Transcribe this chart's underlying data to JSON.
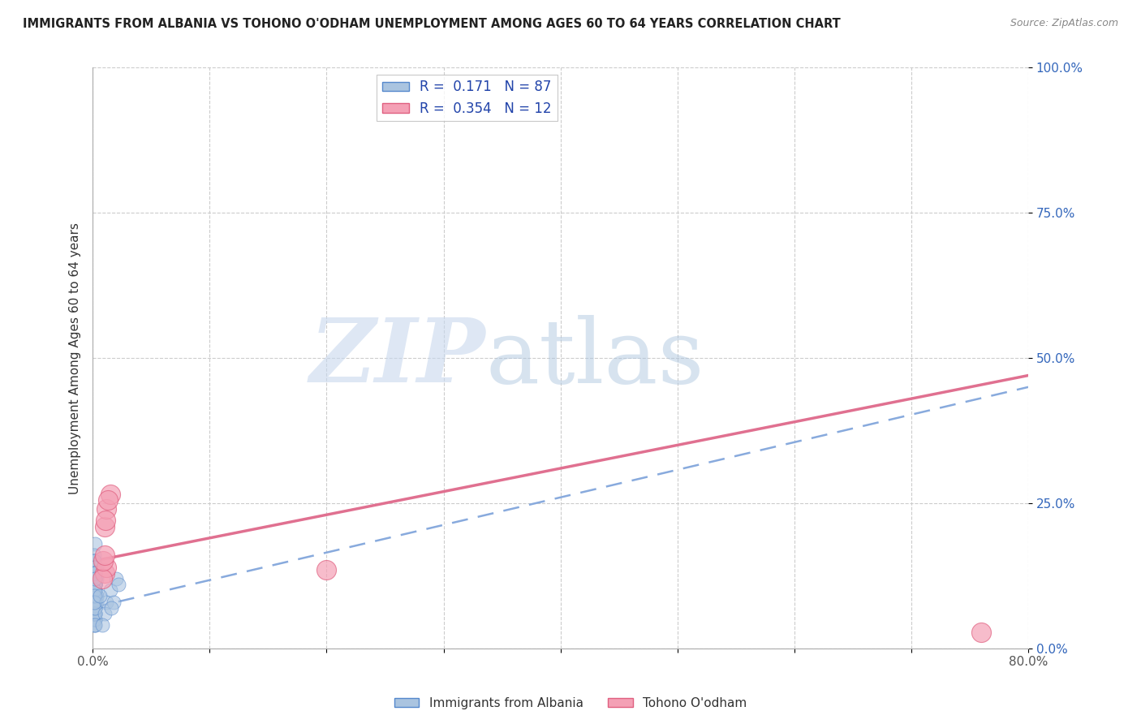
{
  "title": "IMMIGRANTS FROM ALBANIA VS TOHONO O'ODHAM UNEMPLOYMENT AMONG AGES 60 TO 64 YEARS CORRELATION CHART",
  "source": "Source: ZipAtlas.com",
  "ylabel": "Unemployment Among Ages 60 to 64 years",
  "xlabel": "",
  "xlim": [
    0.0,
    0.8
  ],
  "ylim": [
    0.0,
    1.0
  ],
  "xticks": [
    0.0,
    0.1,
    0.2,
    0.3,
    0.4,
    0.5,
    0.6,
    0.7,
    0.8
  ],
  "xticklabels": [
    "0.0%",
    "",
    "",
    "",
    "",
    "",
    "",
    "",
    "80.0%"
  ],
  "yticks": [
    0.0,
    0.25,
    0.5,
    0.75,
    1.0
  ],
  "yticklabels": [
    "0.0%",
    "25.0%",
    "50.0%",
    "75.0%",
    "100.0%"
  ],
  "blue_label": "Immigrants from Albania",
  "pink_label": "Tohono O'odham",
  "R_blue": 0.171,
  "N_blue": 87,
  "R_pink": 0.354,
  "N_pink": 12,
  "blue_color": "#aac4e0",
  "pink_color": "#f4a0b5",
  "blue_edge": "#5588cc",
  "pink_edge": "#e06080",
  "trend_blue_color": "#88aadd",
  "trend_pink_color": "#e07090",
  "background_color": "#ffffff",
  "grid_color": "#cccccc",
  "title_color": "#222222",
  "watermark_zip": "ZIP",
  "watermark_atlas": "atlas",
  "watermark_color_zip": "#c8d8ee",
  "watermark_color_atlas": "#b0c8e0",
  "blue_trend_x0": 0.0,
  "blue_trend_y0": 0.07,
  "blue_trend_x1": 0.8,
  "blue_trend_y1": 0.45,
  "pink_trend_x0": 0.0,
  "pink_trend_y0": 0.15,
  "pink_trend_x1": 0.8,
  "pink_trend_y1": 0.47,
  "blue_points_x": [
    0.001,
    0.002,
    0.003,
    0.002,
    0.001,
    0.003,
    0.001,
    0.002,
    0.001,
    0.002,
    0.003,
    0.002,
    0.001,
    0.002,
    0.001,
    0.003,
    0.002,
    0.001,
    0.002,
    0.002,
    0.001,
    0.002,
    0.002,
    0.001,
    0.002,
    0.002,
    0.001,
    0.002,
    0.003,
    0.002,
    0.001,
    0.002,
    0.002,
    0.001,
    0.001,
    0.002,
    0.002,
    0.001,
    0.002,
    0.002,
    0.001,
    0.002,
    0.001,
    0.001,
    0.002,
    0.002,
    0.001,
    0.002,
    0.002,
    0.001,
    0.001,
    0.002,
    0.002,
    0.001,
    0.002,
    0.001,
    0.001,
    0.002,
    0.002,
    0.001,
    0.002,
    0.002,
    0.001,
    0.001,
    0.002,
    0.002,
    0.001,
    0.002,
    0.002,
    0.001,
    0.002,
    0.001,
    0.002,
    0.002,
    0.001,
    0.002,
    0.002,
    0.001,
    0.015,
    0.012,
    0.01,
    0.008,
    0.006,
    0.02,
    0.018,
    0.016,
    0.022
  ],
  "blue_points_y": [
    0.15,
    0.18,
    0.14,
    0.1,
    0.12,
    0.08,
    0.16,
    0.13,
    0.07,
    0.11,
    0.09,
    0.06,
    0.14,
    0.1,
    0.08,
    0.12,
    0.07,
    0.15,
    0.09,
    0.05,
    0.13,
    0.11,
    0.06,
    0.1,
    0.08,
    0.14,
    0.12,
    0.07,
    0.09,
    0.05,
    0.11,
    0.13,
    0.06,
    0.1,
    0.08,
    0.12,
    0.07,
    0.15,
    0.09,
    0.04,
    0.06,
    0.11,
    0.13,
    0.08,
    0.1,
    0.07,
    0.12,
    0.05,
    0.09,
    0.14,
    0.08,
    0.06,
    0.11,
    0.1,
    0.07,
    0.13,
    0.09,
    0.05,
    0.12,
    0.08,
    0.06,
    0.11,
    0.1,
    0.07,
    0.13,
    0.09,
    0.04,
    0.12,
    0.08,
    0.06,
    0.11,
    0.1,
    0.07,
    0.13,
    0.09,
    0.04,
    0.12,
    0.08,
    0.1,
    0.08,
    0.06,
    0.04,
    0.09,
    0.12,
    0.08,
    0.07,
    0.11
  ],
  "pink_points_x": [
    0.01,
    0.012,
    0.015,
    0.013,
    0.011,
    0.01,
    0.012,
    0.008,
    0.009,
    0.01,
    0.2,
    0.76
  ],
  "pink_points_y": [
    0.21,
    0.24,
    0.265,
    0.255,
    0.22,
    0.13,
    0.14,
    0.12,
    0.15,
    0.16,
    0.135,
    0.028
  ]
}
